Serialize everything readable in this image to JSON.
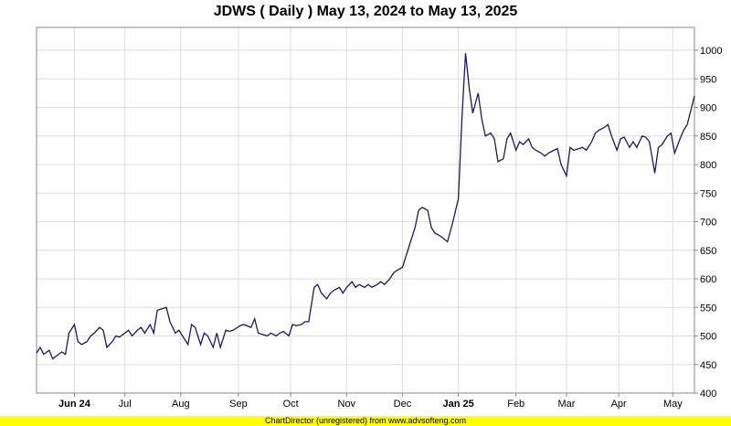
{
  "colors": {
    "line": "#1a1a5e",
    "grid": "#dddddd",
    "footer_bg": "#ffff00"
  },
  "footer": "ChartDirector (unregistered) from www.advsofteng.com",
  "chart_data": {
    "type": "line",
    "title": "JDWS ( Daily ) May 13, 2024 to May 13, 2025",
    "xlabel": "",
    "ylabel": "",
    "ylim": [
      400,
      1040
    ],
    "yticks": [
      400,
      450,
      500,
      550,
      600,
      650,
      700,
      750,
      800,
      850,
      900,
      950,
      1000
    ],
    "x_range": [
      "2024-05-13",
      "2025-05-13"
    ],
    "xticks": [
      {
        "date": "2024-06-03",
        "label": "Jun 24",
        "bold": true
      },
      {
        "date": "2024-07-01",
        "label": "Jul",
        "bold": false
      },
      {
        "date": "2024-08-01",
        "label": "Aug",
        "bold": false
      },
      {
        "date": "2024-09-02",
        "label": "Sep",
        "bold": false
      },
      {
        "date": "2024-10-01",
        "label": "Oct",
        "bold": false
      },
      {
        "date": "2024-11-01",
        "label": "Nov",
        "bold": false
      },
      {
        "date": "2024-12-02",
        "label": "Dec",
        "bold": false
      },
      {
        "date": "2025-01-02",
        "label": "Jan 25",
        "bold": true
      },
      {
        "date": "2025-02-03",
        "label": "Feb",
        "bold": false
      },
      {
        "date": "2025-03-03",
        "label": "Mar",
        "bold": false
      },
      {
        "date": "2025-04-01",
        "label": "Apr",
        "bold": false
      },
      {
        "date": "2025-05-01",
        "label": "May",
        "bold": false
      }
    ],
    "grid": true,
    "series": [
      {
        "points": [
          [
            "2024-05-13",
            470
          ],
          [
            "2024-05-15",
            480
          ],
          [
            "2024-05-17",
            468
          ],
          [
            "2024-05-20",
            475
          ],
          [
            "2024-05-22",
            460
          ],
          [
            "2024-05-24",
            465
          ],
          [
            "2024-05-27",
            472
          ],
          [
            "2024-05-29",
            468
          ],
          [
            "2024-05-31",
            505
          ],
          [
            "2024-06-03",
            520
          ],
          [
            "2024-06-05",
            490
          ],
          [
            "2024-06-07",
            485
          ],
          [
            "2024-06-10",
            490
          ],
          [
            "2024-06-12",
            500
          ],
          [
            "2024-06-14",
            505
          ],
          [
            "2024-06-17",
            515
          ],
          [
            "2024-06-19",
            510
          ],
          [
            "2024-06-21",
            480
          ],
          [
            "2024-06-24",
            490
          ],
          [
            "2024-06-26",
            500
          ],
          [
            "2024-06-28",
            498
          ],
          [
            "2024-07-01",
            505
          ],
          [
            "2024-07-03",
            510
          ],
          [
            "2024-07-05",
            500
          ],
          [
            "2024-07-08",
            510
          ],
          [
            "2024-07-10",
            515
          ],
          [
            "2024-07-12",
            505
          ],
          [
            "2024-07-15",
            520
          ],
          [
            "2024-07-17",
            505
          ],
          [
            "2024-07-19",
            545
          ],
          [
            "2024-07-22",
            548
          ],
          [
            "2024-07-24",
            550
          ],
          [
            "2024-07-26",
            525
          ],
          [
            "2024-07-29",
            505
          ],
          [
            "2024-07-31",
            510
          ],
          [
            "2024-08-02",
            500
          ],
          [
            "2024-08-05",
            485
          ],
          [
            "2024-08-07",
            520
          ],
          [
            "2024-08-09",
            515
          ],
          [
            "2024-08-12",
            485
          ],
          [
            "2024-08-14",
            505
          ],
          [
            "2024-08-16",
            500
          ],
          [
            "2024-08-19",
            480
          ],
          [
            "2024-08-21",
            505
          ],
          [
            "2024-08-23",
            480
          ],
          [
            "2024-08-26",
            510
          ],
          [
            "2024-08-28",
            508
          ],
          [
            "2024-08-30",
            510
          ],
          [
            "2024-09-03",
            518
          ],
          [
            "2024-09-05",
            520
          ],
          [
            "2024-09-09",
            515
          ],
          [
            "2024-09-11",
            530
          ],
          [
            "2024-09-13",
            505
          ],
          [
            "2024-09-16",
            502
          ],
          [
            "2024-09-18",
            500
          ],
          [
            "2024-09-20",
            505
          ],
          [
            "2024-09-23",
            500
          ],
          [
            "2024-09-25",
            505
          ],
          [
            "2024-09-27",
            508
          ],
          [
            "2024-09-30",
            500
          ],
          [
            "2024-10-02",
            520
          ],
          [
            "2024-10-04",
            518
          ],
          [
            "2024-10-07",
            520
          ],
          [
            "2024-10-09",
            525
          ],
          [
            "2024-10-11",
            525
          ],
          [
            "2024-10-14",
            585
          ],
          [
            "2024-10-16",
            590
          ],
          [
            "2024-10-18",
            575
          ],
          [
            "2024-10-21",
            565
          ],
          [
            "2024-10-23",
            575
          ],
          [
            "2024-10-25",
            580
          ],
          [
            "2024-10-28",
            585
          ],
          [
            "2024-10-30",
            575
          ],
          [
            "2024-11-01",
            585
          ],
          [
            "2024-11-04",
            595
          ],
          [
            "2024-11-06",
            585
          ],
          [
            "2024-11-08",
            590
          ],
          [
            "2024-11-11",
            585
          ],
          [
            "2024-11-13",
            590
          ],
          [
            "2024-11-15",
            585
          ],
          [
            "2024-11-18",
            590
          ],
          [
            "2024-11-20",
            595
          ],
          [
            "2024-11-22",
            590
          ],
          [
            "2024-11-25",
            600
          ],
          [
            "2024-11-27",
            610
          ],
          [
            "2024-11-29",
            615
          ],
          [
            "2024-12-02",
            620
          ],
          [
            "2024-12-04",
            640
          ],
          [
            "2024-12-06",
            660
          ],
          [
            "2024-12-09",
            690
          ],
          [
            "2024-12-11",
            720
          ],
          [
            "2024-12-13",
            725
          ],
          [
            "2024-12-16",
            720
          ],
          [
            "2024-12-18",
            690
          ],
          [
            "2024-12-20",
            680
          ],
          [
            "2024-12-23",
            675
          ],
          [
            "2024-12-25",
            670
          ],
          [
            "2024-12-27",
            665
          ],
          [
            "2024-12-30",
            700
          ],
          [
            "2025-01-02",
            740
          ],
          [
            "2025-01-04",
            880
          ],
          [
            "2025-01-06",
            995
          ],
          [
            "2025-01-08",
            935
          ],
          [
            "2025-01-10",
            890
          ],
          [
            "2025-01-13",
            925
          ],
          [
            "2025-01-15",
            880
          ],
          [
            "2025-01-17",
            850
          ],
          [
            "2025-01-20",
            855
          ],
          [
            "2025-01-22",
            845
          ],
          [
            "2025-01-24",
            805
          ],
          [
            "2025-01-27",
            810
          ],
          [
            "2025-01-29",
            845
          ],
          [
            "2025-01-31",
            855
          ],
          [
            "2025-02-03",
            825
          ],
          [
            "2025-02-05",
            840
          ],
          [
            "2025-02-07",
            835
          ],
          [
            "2025-02-10",
            845
          ],
          [
            "2025-02-12",
            830
          ],
          [
            "2025-02-14",
            825
          ],
          [
            "2025-02-17",
            820
          ],
          [
            "2025-02-19",
            815
          ],
          [
            "2025-02-21",
            820
          ],
          [
            "2025-02-24",
            825
          ],
          [
            "2025-02-26",
            828
          ],
          [
            "2025-02-28",
            800
          ],
          [
            "2025-03-03",
            780
          ],
          [
            "2025-03-05",
            830
          ],
          [
            "2025-03-07",
            825
          ],
          [
            "2025-03-10",
            828
          ],
          [
            "2025-03-12",
            830
          ],
          [
            "2025-03-14",
            825
          ],
          [
            "2025-03-17",
            840
          ],
          [
            "2025-03-19",
            855
          ],
          [
            "2025-03-21",
            860
          ],
          [
            "2025-03-24",
            865
          ],
          [
            "2025-03-26",
            870
          ],
          [
            "2025-03-28",
            850
          ],
          [
            "2025-03-31",
            825
          ],
          [
            "2025-04-02",
            845
          ],
          [
            "2025-04-04",
            848
          ],
          [
            "2025-04-07",
            830
          ],
          [
            "2025-04-09",
            840
          ],
          [
            "2025-04-11",
            830
          ],
          [
            "2025-04-14",
            850
          ],
          [
            "2025-04-16",
            848
          ],
          [
            "2025-04-18",
            840
          ],
          [
            "2025-04-21",
            785
          ],
          [
            "2025-04-23",
            830
          ],
          [
            "2025-04-25",
            835
          ],
          [
            "2025-04-28",
            850
          ],
          [
            "2025-04-30",
            855
          ],
          [
            "2025-05-02",
            820
          ],
          [
            "2025-05-05",
            845
          ],
          [
            "2025-05-07",
            860
          ],
          [
            "2025-05-09",
            870
          ],
          [
            "2025-05-13",
            920
          ]
        ]
      }
    ]
  }
}
